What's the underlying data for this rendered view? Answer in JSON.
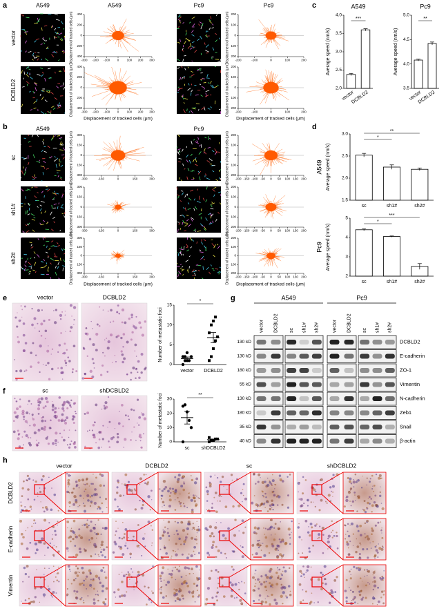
{
  "panels": {
    "a": {
      "label": "a",
      "headers": [
        "A549",
        "A549",
        "Pc9",
        "Pc9"
      ],
      "rows": [
        "vector",
        "DCBLD2"
      ],
      "xlabel": "Displacement of tracked cells (μm)",
      "ylabel": "Displacement of tracked cells (μm)",
      "plots": [
        {
          "xlim": [
            -300,
            300
          ],
          "xticks": [
            -300,
            -200,
            -100,
            0,
            100,
            200,
            300
          ],
          "ylim": [
            -400,
            400
          ],
          "yticks": [
            400,
            200,
            0,
            {
              "value": -200,
              "label": "200"
            },
            {
              "value": -400,
              "label": "400"
            }
          ]
        },
        {
          "xlim": [
            -200,
            200
          ],
          "xticks": [
            -200,
            -100,
            0,
            100,
            200
          ],
          "ylim": [
            -200,
            200
          ],
          "yticks": [
            200,
            100,
            0,
            {
              "value": -100,
              "label": "100"
            },
            {
              "value": -200,
              "label": "200"
            }
          ]
        }
      ]
    },
    "b": {
      "label": "b",
      "headers": [
        "A549",
        "Pc9"
      ],
      "rows": [
        "sc",
        "sh1#",
        "sh2#"
      ],
      "xlabel": "Displacement of tracked cells (μm)",
      "ylabel": "Displacement of tracked cells (μm)",
      "plots": [
        {
          "xlim": [
            -300,
            300
          ],
          "xticks": [
            -300,
            -150,
            0,
            150,
            300
          ],
          "ylim": [
            -300,
            300
          ],
          "yticks": [
            300,
            150,
            0,
            {
              "value": -150,
              "label": "150"
            },
            {
              "value": -300,
              "label": "300"
            }
          ]
        },
        {
          "xlim": [
            -200,
            200
          ],
          "xticks": [
            -200,
            -150,
            -100,
            -50,
            0,
            50,
            100,
            150,
            200
          ],
          "ylim": [
            -200,
            200
          ],
          "yticks": [
            200,
            100,
            0,
            {
              "value": -100,
              "label": "100"
            },
            {
              "value": -200,
              "label": "200"
            }
          ]
        }
      ]
    },
    "c": {
      "label": "c",
      "charts": [
        {
          "title": "A549",
          "ylabel": "Average speed (nm/s)",
          "categories": [
            "vector",
            "DCBLD2"
          ],
          "values": [
            2.38,
            3.6
          ],
          "errors": [
            0.03,
            0.03
          ],
          "ylim": [
            2,
            4
          ],
          "yticks": [
            {
              "value": 2,
              "label": "2.0"
            },
            2.5,
            {
              "value": 3,
              "label": "3.0"
            },
            3.5,
            {
              "value": 4,
              "label": "4.0"
            }
          ],
          "significance": [
            "***"
          ]
        },
        {
          "title": "Pc9",
          "ylabel": "Average speed (nm/s)",
          "categories": [
            "vector",
            "DCBLD2"
          ],
          "values": [
            4.08,
            4.42
          ],
          "errors": [
            0.02,
            0.03
          ],
          "ylim": [
            3.5,
            5
          ],
          "yticks": [
            3.5,
            {
              "value": 4,
              "label": "4.0"
            },
            4.5,
            {
              "value": 5,
              "label": "5.0"
            }
          ],
          "significance": [
            "**"
          ]
        }
      ]
    },
    "d": {
      "label": "d",
      "charts": [
        {
          "title": "A549",
          "ylabel": "Average speed (nm/s)",
          "categories": [
            "sc",
            "sh1#",
            "sh2#"
          ],
          "values": [
            2.52,
            2.25,
            2.2
          ],
          "errors": [
            0.04,
            0.05,
            0.03
          ],
          "ylim": [
            1.5,
            3
          ],
          "yticks": [
            1.5,
            {
              "value": 2,
              "label": "2.0"
            },
            2.5,
            {
              "value": 3,
              "label": "3.0"
            }
          ],
          "significance": [
            "*",
            "**"
          ]
        },
        {
          "title": "Pc9",
          "ylabel": "Average speed (nm/s)",
          "categories": [
            "sc",
            "sh1#",
            "sh2#"
          ],
          "values": [
            4.4,
            4.05,
            2.5
          ],
          "errors": [
            0.05,
            0.03,
            0.15
          ],
          "ylim": [
            2,
            5
          ],
          "yticks": [
            2,
            3,
            4,
            5
          ],
          "significance": [
            "*",
            "***"
          ]
        }
      ]
    },
    "e": {
      "label": "e",
      "images": [
        "vector",
        "DCBLD2"
      ],
      "plot": {
        "ylabel": "Number of metastatic foci",
        "categories": [
          "vector",
          "DCBLD2"
        ],
        "points": [
          [
            0,
            1,
            1,
            1,
            2,
            2,
            2,
            3
          ],
          [
            1,
            2,
            4,
            6,
            7,
            8,
            10,
            11,
            12
          ]
        ],
        "means": [
          1.5,
          6.8
        ],
        "sems": [
          0.4,
          1.3
        ],
        "ylim": [
          0,
          15
        ],
        "yticks": [
          0,
          5,
          10,
          15
        ],
        "significance": "*"
      }
    },
    "f": {
      "label": "f",
      "images": [
        "sc",
        "shDCBLD2"
      ],
      "plot": {
        "ylabel": "Number of metastatic foci",
        "categories": [
          "sc",
          "shDCBLD2"
        ],
        "points": [
          [
            25,
            26,
            21,
            15,
            10,
            0
          ],
          [
            0,
            1,
            1,
            2,
            2,
            3
          ]
        ],
        "means": [
          17,
          1.5
        ],
        "sems": [
          4.5,
          0.5
        ],
        "ylim": [
          0,
          30
        ],
        "yticks": [
          0,
          10,
          20,
          30
        ],
        "significance": "**"
      }
    },
    "g": {
      "label": "g",
      "groups": [
        "A549",
        "Pc9"
      ],
      "lanes": [
        "vector",
        "DCBLD2",
        "sc",
        "sh1#",
        "sh2#",
        "vector",
        "DCBLD2",
        "sc",
        "sh1#",
        "sh2#"
      ],
      "markers": [
        "130 kD",
        "130 kD",
        "180 kD",
        "55 kD",
        "130 kD",
        "180 kD",
        "35 kD",
        "40 kD"
      ],
      "proteins": [
        "DCBLD2",
        "E-cadherin",
        "ZO-1",
        "Vimentin",
        "N-cadherin",
        "Zeb1",
        "Snail",
        "β-actin"
      ]
    },
    "h": {
      "label": "h",
      "columns": [
        "vector",
        "DCBLD2",
        "sc",
        "shDCBLD2"
      ],
      "rows": [
        "DCBLD2",
        "E-cadherin",
        "Vimentin"
      ]
    }
  }
}
